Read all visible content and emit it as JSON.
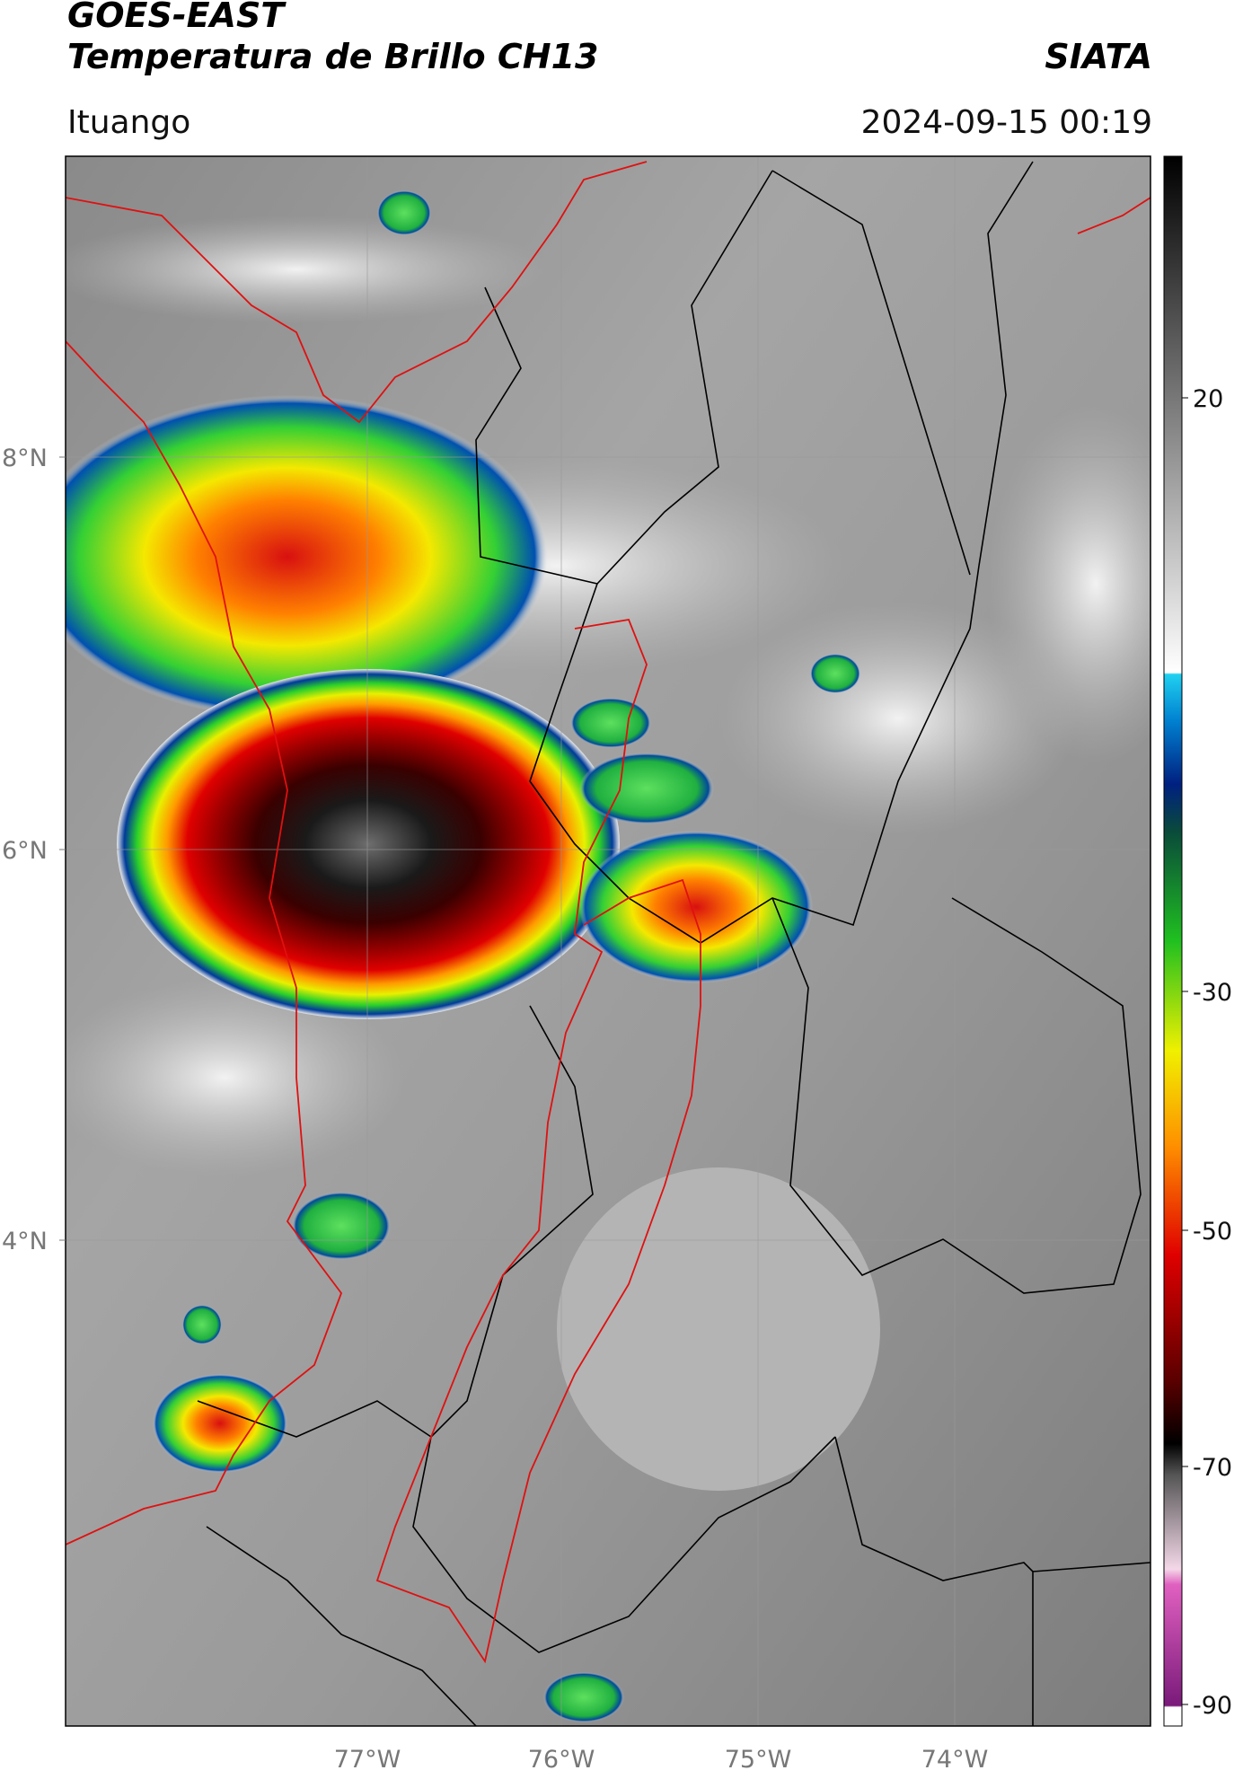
{
  "header": {
    "title": "GOES-EAST",
    "subtitle": "Temperatura de Brillo CH13",
    "source": "SIATA",
    "location": "Ituango",
    "datetime": "2024-09-15 00:19"
  },
  "map": {
    "lat_labels": [
      "8°N",
      "6°N",
      "4°N"
    ],
    "lon_labels": [
      "77°W",
      "76°W",
      "75°W",
      "74°W"
    ]
  },
  "colorbar": {
    "labels": [
      "20",
      "-30",
      "-50",
      "-70",
      "-90"
    ]
  }
}
